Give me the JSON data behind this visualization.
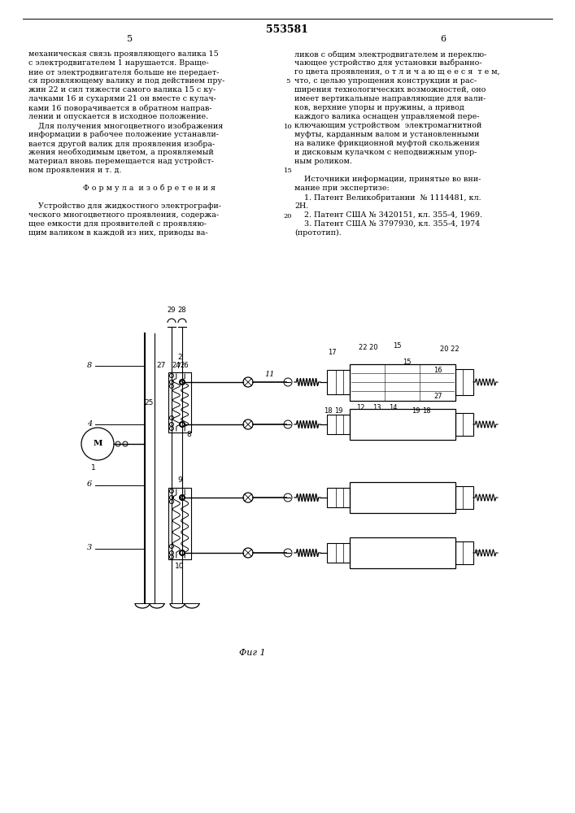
{
  "patent_number": "553581",
  "page_left": "5",
  "page_right": "6",
  "col_left_lines": [
    "механическая связь проявляющего валика 15",
    "с электродвигателем 1 нарушается. Враще-",
    "ние от электродвигателя больше не передает-",
    "ся проявляющему валику и под действием пру-",
    "жин 22 и сил тяжести самого валика 15 с ку-",
    "лачками 16 и сухарями 21 он вместе с кулач-",
    "ками 16 поворачивается в обратном направ-",
    "лении и опускается в исходное положение.",
    "    Для получения многоцветного изображения",
    "информации в рабочее положение устанавли-",
    "вается другой валик для проявления изобра-",
    "жения необходимым цветом, а проявляемый",
    "материал вновь перемещается над устройст-",
    "вом проявления и т. д.",
    "",
    "        Ф о р м у л а  и з о б р е т е н и я",
    "",
    "    Устройство для жидкостного электрографи-",
    "ческого многоцветного проявления, содержа-",
    "щее емкости для проявителей с проявляю-",
    "щим валиком в каждой из них, приводы ва-"
  ],
  "col_right_lines": [
    "ликов с общим электродвигателем и переклю-",
    "чающее устройство для установки выбранно-",
    "го цвета проявления, о т л и ч а ю щ е е с я  т е м,",
    "что, с целью упрощения конструкции и рас-",
    "ширения технологических возможностей, оно",
    "имеет вертикальные направляющие для вали-",
    "ков, верхние упоры и пружины, а привод",
    "каждого валика оснащен управляемой пере-",
    "ключающим устройством  электромагнитной",
    "муфты, карданным валом и установленными",
    "на валике фрикционной муфтой скольжения",
    "и дисковым кулачком с неподвижным упор-",
    "ным роликом.",
    "",
    "    Источники информации, принятые во вни-",
    "мание при экспертизе:",
    "    1. Патент Великобритании  № 1114481, кл.",
    "2Н.",
    "    2. Патент США № 3420151, кл. 355-4, 1969.",
    "    3. Патент США № 3797930, кл. 355-4, 1974",
    "(прототип)."
  ],
  "line_numbers": [
    [
      4,
      "5"
    ],
    [
      9,
      "10"
    ],
    [
      14,
      "15"
    ],
    [
      19,
      "20"
    ]
  ],
  "fig_caption": "Фиг 1",
  "text_color": "#000000",
  "font_size": 6.8,
  "title_font_size": 8.5
}
